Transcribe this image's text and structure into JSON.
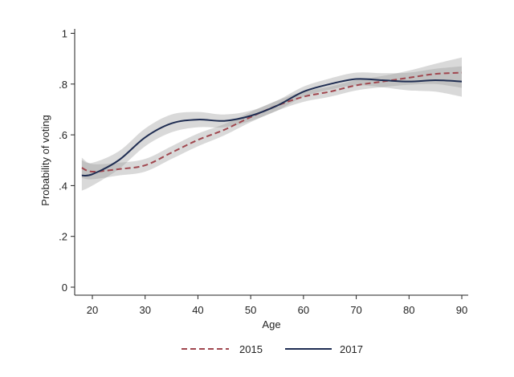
{
  "chart_data": {
    "type": "line",
    "title": "",
    "xlabel": "Age",
    "ylabel": "Probability of voting",
    "xlim": [
      17,
      92
    ],
    "ylim": [
      0,
      1
    ],
    "xticks": [
      20,
      30,
      40,
      50,
      60,
      70,
      80,
      90
    ],
    "xtick_labels": [
      "20",
      "30",
      "40",
      "50",
      "60",
      "70",
      "80",
      "90"
    ],
    "yticks": [
      0,
      0.2,
      0.4,
      0.6,
      0.8,
      1
    ],
    "ytick_labels": [
      "0",
      ".2",
      ".4",
      ".6",
      ".8",
      "1"
    ],
    "grid": false,
    "legend_position": "bottom",
    "x": [
      18,
      20,
      25,
      30,
      35,
      40,
      45,
      50,
      55,
      60,
      65,
      70,
      75,
      80,
      85,
      90
    ],
    "series": [
      {
        "name": "2015",
        "color": "#a0464e",
        "dash": "dashed",
        "values": [
          0.47,
          0.455,
          0.465,
          0.48,
          0.53,
          0.58,
          0.62,
          0.67,
          0.715,
          0.75,
          0.77,
          0.795,
          0.81,
          0.825,
          0.84,
          0.845
        ],
        "ci_halfwidth": [
          0.04,
          0.03,
          0.025,
          0.025,
          0.025,
          0.025,
          0.022,
          0.02,
          0.02,
          0.02,
          0.02,
          0.02,
          0.022,
          0.028,
          0.04,
          0.06
        ]
      },
      {
        "name": "2017",
        "color": "#1f2d52",
        "dash": "solid",
        "values": [
          0.44,
          0.445,
          0.5,
          0.59,
          0.645,
          0.66,
          0.655,
          0.675,
          0.715,
          0.77,
          0.8,
          0.82,
          0.815,
          0.81,
          0.815,
          0.81
        ],
        "ci_halfwidth": [
          0.06,
          0.045,
          0.035,
          0.035,
          0.035,
          0.03,
          0.025,
          0.02,
          0.02,
          0.02,
          0.022,
          0.025,
          0.028,
          0.035,
          0.045,
          0.06
        ]
      }
    ]
  }
}
